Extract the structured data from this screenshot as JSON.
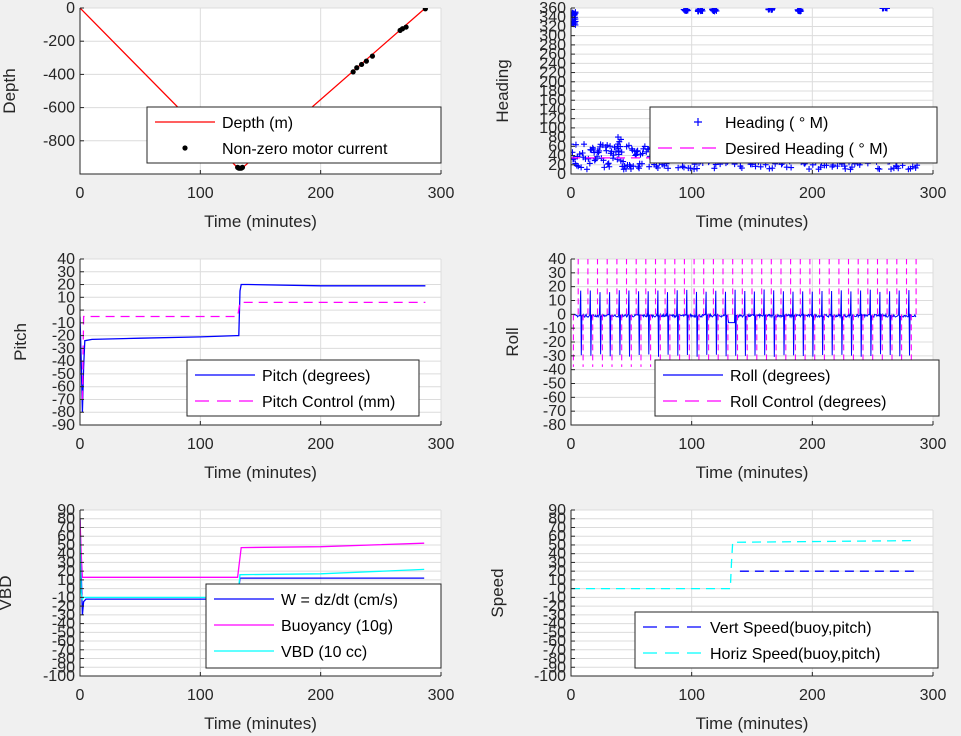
{
  "chart_data": [
    {
      "type": "line",
      "ylabel": "Depth",
      "xlabel": "Time (minutes)",
      "xlim": [
        0,
        300
      ],
      "ylim": [
        -1000,
        0
      ],
      "xticks": [
        0,
        100,
        200,
        300
      ],
      "yticks": [
        0,
        -200,
        -400,
        -600,
        -800
      ],
      "legend_position": "bottom-center",
      "series": [
        {
          "name": "Depth (m)",
          "style": "line",
          "color": "#ff0000",
          "x": [
            0,
            132,
            134,
            287
          ],
          "y": [
            0,
            -970,
            -970,
            0
          ]
        },
        {
          "name": "Non-zero motor current",
          "style": "dots",
          "color": "#000000",
          "x": [
            131,
            132,
            133,
            134,
            135,
            227,
            230,
            234,
            238,
            243,
            266,
            268,
            271,
            287
          ],
          "y": [
            -960,
            -965,
            -965,
            -965,
            -960,
            -385,
            -360,
            -340,
            -320,
            -290,
            -135,
            -125,
            -115,
            -5
          ]
        }
      ]
    },
    {
      "type": "scatter",
      "ylabel": "Heading",
      "xlabel": "Time (minutes)",
      "xlim": [
        0,
        300
      ],
      "ylim": [
        0,
        360
      ],
      "xticks": [
        0,
        100,
        200,
        300
      ],
      "yticks": [
        0,
        20,
        40,
        60,
        80,
        100,
        120,
        140,
        160,
        180,
        200,
        220,
        240,
        260,
        280,
        300,
        320,
        340,
        360
      ],
      "legend_position": "bottom-right",
      "series": [
        {
          "name": "Heading (  ° M)",
          "style": "plus",
          "color": "#0000ff",
          "clusters": [
            {
              "x": 2,
              "y": 345,
              "spread": 20
            },
            {
              "x": 2,
              "y": 330,
              "spread": 15
            },
            {
              "x": 95,
              "y": 355,
              "spread": 5
            },
            {
              "x": 107,
              "y": 355,
              "spread": 5
            },
            {
              "x": 119,
              "y": 355,
              "spread": 5
            },
            {
              "x": 165,
              "y": 357,
              "spread": 3
            },
            {
              "x": 189,
              "y": 355,
              "spread": 5
            },
            {
              "x": 260,
              "y": 360,
              "spread": 2
            }
          ],
          "band_y": [
            10,
            65
          ],
          "band_x": [
            0,
            287
          ]
        },
        {
          "name": "Desired Heading (  ° M)",
          "style": "dashed",
          "color": "#ff00ff",
          "x": [
            0,
            287
          ],
          "y": [
            35,
            35
          ]
        }
      ]
    },
    {
      "type": "line",
      "ylabel": "Pitch",
      "xlabel": "Time (minutes)",
      "xlim": [
        0,
        300
      ],
      "ylim": [
        -90,
        40
      ],
      "xticks": [
        0,
        100,
        200,
        300
      ],
      "yticks": [
        40,
        30,
        20,
        10,
        0,
        -10,
        -20,
        -30,
        -40,
        -50,
        -60,
        -70,
        -80,
        -90
      ],
      "legend_position": "bottom-right",
      "series": [
        {
          "name": "Pitch (degrees)",
          "style": "line",
          "color": "#0000ff",
          "x": [
            0,
            1,
            2,
            3,
            4,
            10,
            50,
            100,
            130,
            132,
            133,
            134,
            140,
            200,
            250,
            287
          ],
          "y": [
            -5,
            -40,
            -80,
            -45,
            -24,
            -23,
            -22,
            -21,
            -20,
            -20,
            15,
            20,
            20,
            19,
            19,
            19
          ]
        },
        {
          "name": "Pitch Control (mm)",
          "style": "dashed",
          "color": "#ff00ff",
          "x": [
            2,
            3,
            4,
            131,
            133,
            287
          ],
          "y": [
            -70,
            -5,
            -5,
            -5,
            6,
            6
          ]
        }
      ]
    },
    {
      "type": "line",
      "ylabel": "Roll",
      "xlabel": "Time (minutes)",
      "xlim": [
        0,
        300
      ],
      "ylim": [
        -80,
        40
      ],
      "xticks": [
        0,
        100,
        200,
        300
      ],
      "yticks": [
        40,
        30,
        20,
        10,
        0,
        -10,
        -20,
        -30,
        -40,
        -50,
        -60,
        -70,
        -80
      ],
      "legend_position": "bottom-right",
      "series": [
        {
          "name": "Roll (degrees)",
          "style": "line",
          "color": "#0000ff",
          "baseline": -1,
          "spike_amplitude": 18,
          "spike_period": 8
        },
        {
          "name": "Roll Control (degrees)",
          "style": "dashed",
          "color": "#ff00ff",
          "high": 40,
          "low": -38,
          "period": 8
        }
      ]
    },
    {
      "type": "line",
      "ylabel": "VBD",
      "xlabel": "Time (minutes)",
      "xlim": [
        0,
        300
      ],
      "ylim": [
        -100,
        90
      ],
      "xticks": [
        0,
        100,
        200,
        300
      ],
      "yticks": [
        90,
        80,
        70,
        60,
        50,
        40,
        30,
        20,
        10,
        0,
        -10,
        -20,
        -30,
        -40,
        -50,
        -60,
        -70,
        -80,
        -90,
        -100
      ],
      "legend_position": "bottom-right",
      "series": [
        {
          "name": "W = dz/dt (cm/s)",
          "style": "line",
          "color": "#0000ff",
          "x": [
            0,
            1,
            2,
            3,
            5,
            60,
            131,
            133,
            135,
            200,
            286
          ],
          "y": [
            80,
            20,
            -30,
            -15,
            -12,
            -12,
            -12,
            12,
            12,
            12,
            12
          ]
        },
        {
          "name": "Buoyancy (10g)",
          "style": "line",
          "color": "#ff00ff",
          "x": [
            0,
            1,
            2,
            4,
            131,
            134,
            200,
            286
          ],
          "y": [
            80,
            40,
            13,
            13,
            13,
            47,
            48,
            52
          ]
        },
        {
          "name": "VBD (10 cc)",
          "style": "line",
          "color": "#00ffff",
          "x": [
            0,
            1,
            2,
            3,
            131,
            133,
            200,
            286
          ],
          "y": [
            60,
            -5,
            -12,
            -10,
            -10,
            16,
            17,
            22
          ]
        }
      ]
    },
    {
      "type": "line",
      "ylabel": "Speed",
      "xlabel": "Time (minutes)",
      "xlim": [
        0,
        300
      ],
      "ylim": [
        -100,
        90
      ],
      "xticks": [
        0,
        100,
        200,
        300
      ],
      "yticks": [
        90,
        80,
        70,
        60,
        50,
        40,
        30,
        20,
        10,
        0,
        -10,
        -20,
        -30,
        -40,
        -50,
        -60,
        -70,
        -80,
        -90,
        -100
      ],
      "legend_position": "bottom-right",
      "series": [
        {
          "name": "Vert Speed(buoy,pitch)",
          "style": "dashed",
          "color": "#0000ff",
          "x": [
            140,
            286
          ],
          "y": [
            20,
            20
          ]
        },
        {
          "name": "Horiz Speed(buoy,pitch)",
          "style": "dashed",
          "color": "#00ffff",
          "x": [
            0,
            132,
            133,
            134,
            286
          ],
          "y": [
            0,
            0,
            30,
            53,
            55
          ]
        }
      ]
    }
  ]
}
